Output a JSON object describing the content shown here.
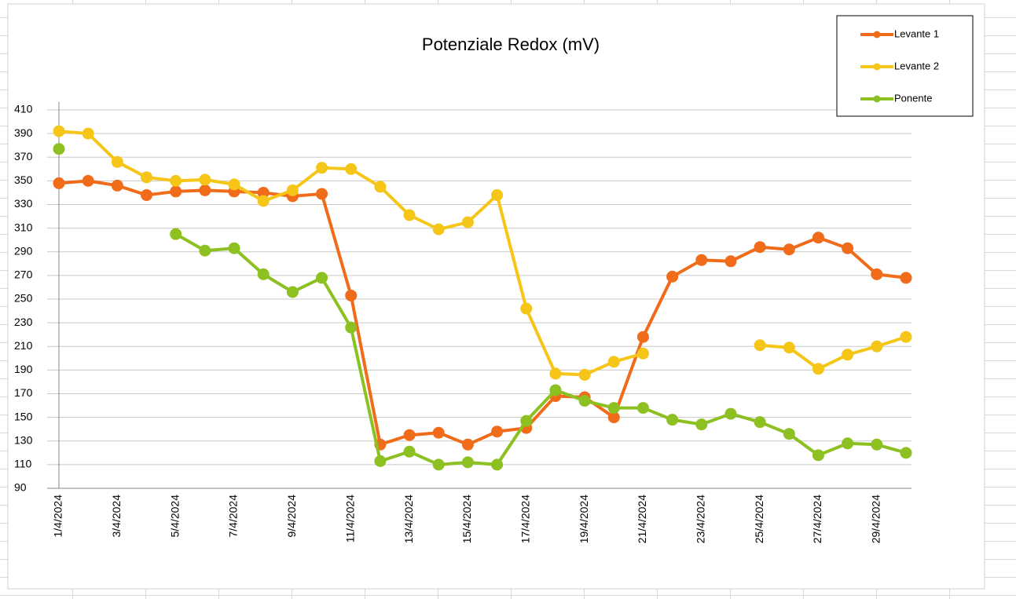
{
  "chart_data": {
    "type": "line",
    "title": "Potenziale Redox  (mV)",
    "categories": [
      "1/4/2024",
      null,
      "3/4/2024",
      null,
      "5/4/2024",
      null,
      "7/4/2024",
      null,
      "9/4/2024",
      null,
      "11/4/2024",
      null,
      "13/4/2024",
      null,
      "15/4/2024",
      null,
      "17/4/2024",
      null,
      "19/4/2024",
      null,
      "21/4/2024",
      null,
      "23/4/2024",
      null,
      "25/4/2024",
      null,
      "27/4/2024",
      null,
      "29/4/2024",
      null
    ],
    "series": [
      {
        "name": "Levante 1",
        "color": "#f06b1a",
        "values": [
          348,
          350,
          346,
          338,
          341,
          342,
          341,
          340,
          337,
          339,
          253,
          127,
          135,
          137,
          127,
          138,
          141,
          168,
          167,
          150,
          218,
          269,
          283,
          282,
          294,
          292,
          302,
          293,
          271,
          268
        ]
      },
      {
        "name": "Levante 2",
        "color": "#f5c518",
        "values": [
          392,
          390,
          366,
          353,
          350,
          351,
          347,
          333,
          342,
          361,
          360,
          345,
          321,
          309,
          315,
          338,
          242,
          187,
          186,
          197,
          204,
          null,
          null,
          null,
          211,
          209,
          191,
          203,
          210,
          218
        ]
      },
      {
        "name": "Ponente",
        "color": "#8dc021",
        "values": [
          377,
          null,
          null,
          null,
          305,
          291,
          293,
          271,
          256,
          268,
          226,
          113,
          121,
          110,
          112,
          110,
          147,
          173,
          164,
          158,
          158,
          148,
          144,
          153,
          146,
          136,
          118,
          128,
          127,
          120
        ]
      }
    ],
    "ylim": [
      90,
      410
    ],
    "yticks": [
      90,
      110,
      130,
      150,
      170,
      190,
      210,
      230,
      250,
      270,
      290,
      310,
      330,
      350,
      370,
      390,
      410
    ],
    "grid": true,
    "legend": "top-right"
  }
}
